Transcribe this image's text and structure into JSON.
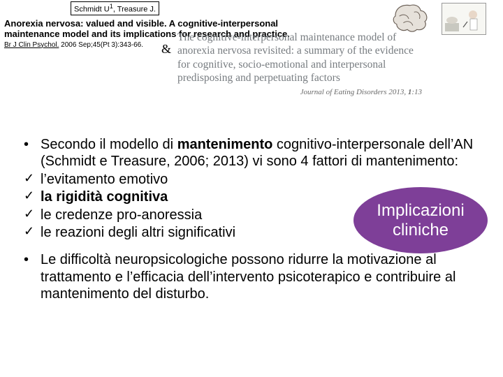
{
  "citations": {
    "left": {
      "authors_html": "Schmidt U<sup>1</sup>, Treasure J.",
      "title": "Anorexia nervosa: valued and visible. A cognitive-interpersonal maintenance model and its implications for research and practice.",
      "journal_html": "<span class='under'>Br J Clin Psychol.</span> 2006 Sep;45(Pt 3):343-66."
    },
    "ampersand": "&",
    "right": {
      "title": "The cognitive-interpersonal maintenance model of anorexia nervosa revisited: a summary of the evidence for cognitive, socio-emotional and interpersonal predisposing and perpetuating factors",
      "journal_html": "<i>Journal of Eating Disorders</i> 2013, <b>1</b>:13"
    }
  },
  "bullets": {
    "dot": "•",
    "check": "✓",
    "main1_html": "Secondo il modello di <b>mantenimento</b> cognitivo-interpersonale dell’AN (Schmidt e Treasure, 2006; 2013) vi sono 4 fattori di mantenimento:",
    "f1": "l’evitamento emotivo",
    "f2_html": "<b>la rigidità cognitiva</b>",
    "f3": "le credenze pro-anoressia",
    "f4": "le reazioni degli altri significativi",
    "main2": "Le difficoltà neuropsicologiche possono ridurre la motivazione al trattamento e l’efficacia dell’intervento psicoterapico e contribuire al mantenimento del disturbo."
  },
  "badge": {
    "text": "Implicazioni cliniche",
    "fill": "#7e3f98",
    "text_color": "#ffffff"
  },
  "colors": {
    "background": "#ffffff",
    "text": "#000000",
    "cite_right_text": "#777c80"
  }
}
